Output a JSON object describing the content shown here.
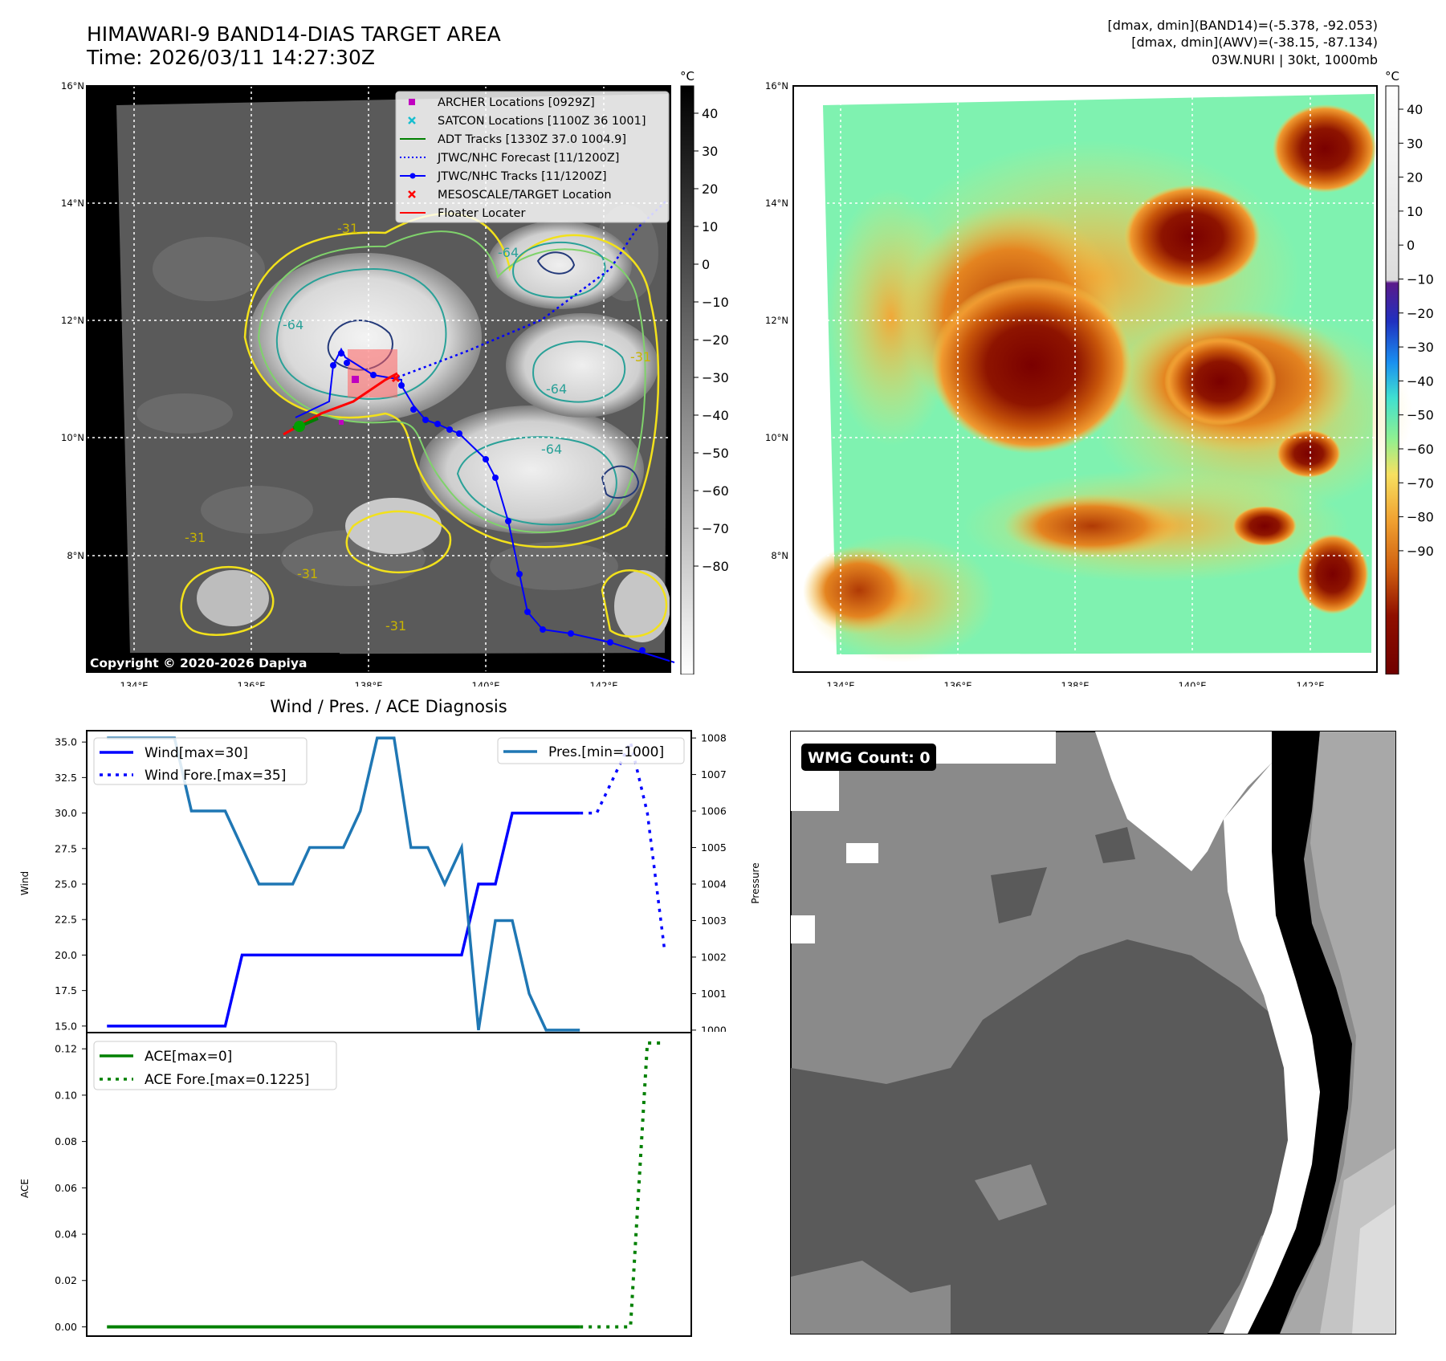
{
  "header": {
    "title_line1": "HIMAWARI-9 BAND14-DIAS TARGET AREA",
    "title_line2": "Time: 2026/03/11 14:27:30Z",
    "info_line1": "[dmax, dmin](BAND14)=(-5.378, -92.053)",
    "info_line2": "[dmax, dmin](AWV)=(-38.15, -87.134)",
    "info_line3": "03W.NURI | 30kt, 1000mb"
  },
  "map_axes": {
    "lat_labels": [
      "16°N",
      "14°N",
      "12°N",
      "10°N",
      "8°N"
    ],
    "lon_labels": [
      "134°E",
      "136°E",
      "138°E",
      "140°E",
      "142°E"
    ]
  },
  "ir_panel": {
    "legend": [
      {
        "label": "ARCHER Locations [0929Z]",
        "color": "#c000c0",
        "marker": "square"
      },
      {
        "label": "SATCON Locations [1100Z 36 1001]",
        "color": "#17becf",
        "marker": "x"
      },
      {
        "label": "ADT Tracks [1330Z 37.0 1004.9]",
        "color": "#008000",
        "marker": "line"
      },
      {
        "label": "JTWC/NHC Forecast [11/1200Z]",
        "color": "#0000ff",
        "marker": "dotted"
      },
      {
        "label": "JTWC/NHC Tracks [11/1200Z]",
        "color": "#0000ff",
        "marker": "dot-line"
      },
      {
        "label": "MESOSCALE/TARGET Location",
        "color": "#ff0000",
        "marker": "x"
      },
      {
        "label": "Floater Locater",
        "color": "#ff0000",
        "marker": "line"
      }
    ],
    "contour_labels": [
      "-31",
      "-64",
      "-64",
      "-64",
      "-64",
      "-31",
      "-31",
      "-31",
      "-31"
    ],
    "copyright": "Copyright © 2020-2026 Dapiya"
  },
  "colorbar_gray": {
    "unit": "°C",
    "ticks": [
      "40",
      "30",
      "20",
      "10",
      "0",
      "−10",
      "−20",
      "−30",
      "−40",
      "−50",
      "−60",
      "−70",
      "−80"
    ]
  },
  "colorbar_color": {
    "unit": "°C",
    "ticks": [
      "40",
      "30",
      "20",
      "10",
      "0",
      "−10",
      "−20",
      "−30",
      "−40",
      "−50",
      "−60",
      "−70",
      "−80",
      "−90"
    ]
  },
  "wmg": {
    "badge": "WMG Count: 0"
  },
  "chart_data": [
    {
      "type": "line",
      "title": "Wind / Pres. / ACE Diagnosis",
      "ylabel": "Wind",
      "y2label": "Pressure",
      "ylim": [
        14.2,
        35.8
      ],
      "y2lim": [
        999.8,
        1008.2
      ],
      "yticks": [
        "35.0",
        "32.5",
        "30.0",
        "27.5",
        "25.0",
        "22.5",
        "20.0",
        "17.5",
        "15.0"
      ],
      "y2ticks": [
        "1008",
        "1007",
        "1006",
        "1005",
        "1004",
        "1003",
        "1002",
        "1001",
        "1000"
      ],
      "x": [
        0,
        1,
        2,
        3,
        4,
        5,
        6,
        7,
        8,
        9,
        10,
        11,
        12,
        13,
        14,
        15,
        16,
        17,
        18,
        19,
        20,
        21,
        22,
        23,
        24,
        25,
        26,
        27,
        28,
        29
      ],
      "series": [
        {
          "name": "Wind[max=30]",
          "axis": "left",
          "color": "#0000ff",
          "style": "solid",
          "x": [
            0,
            1,
            2,
            3,
            4,
            5,
            6,
            7,
            8,
            9,
            10,
            11,
            12,
            13,
            14,
            15,
            16,
            17,
            18,
            19,
            20,
            21,
            22,
            23,
            24,
            25,
            26,
            27,
            28
          ],
          "values": [
            15,
            15,
            15,
            15,
            15,
            15,
            15,
            15,
            20,
            20,
            20,
            20,
            20,
            20,
            20,
            20,
            20,
            20,
            20,
            20,
            20,
            20,
            25,
            25,
            30,
            30,
            30,
            30,
            30
          ]
        },
        {
          "name": "Wind Fore.[max=35]",
          "axis": "left",
          "color": "#0000ff",
          "style": "dotted",
          "x": [
            28,
            29,
            30,
            31,
            32,
            33
          ],
          "values": [
            30,
            30,
            32.5,
            35,
            30,
            20.5
          ]
        },
        {
          "name": "Pres.[min=1000]",
          "axis": "right",
          "color": "#1f77b4",
          "style": "solid",
          "x": [
            0,
            1,
            2,
            3,
            4,
            5,
            6,
            7,
            8,
            9,
            10,
            11,
            12,
            13,
            14,
            15,
            16,
            17,
            18,
            19,
            20,
            21,
            22,
            23,
            24,
            25,
            26,
            27,
            28
          ],
          "values": [
            1008,
            1008,
            1008,
            1008,
            1008,
            1006,
            1006,
            1006,
            1005,
            1004,
            1004,
            1004,
            1005,
            1005,
            1005,
            1006,
            1008,
            1008,
            1005,
            1005,
            1004,
            1005,
            1000,
            1003,
            1003,
            1001,
            1000,
            1000,
            1000
          ]
        }
      ]
    },
    {
      "type": "line",
      "ylabel": "ACE",
      "ylim": [
        -0.004,
        0.127
      ],
      "yticks": [
        "0.12",
        "0.10",
        "0.08",
        "0.06",
        "0.04",
        "0.02",
        "0.00"
      ],
      "series": [
        {
          "name": "ACE[max=0]",
          "color": "#008000",
          "style": "solid",
          "x": [
            0,
            28
          ],
          "values": [
            0,
            0
          ]
        },
        {
          "name": "ACE Fore.[max=0.1225]",
          "color": "#008000",
          "style": "dotted",
          "x": [
            28,
            31,
            32,
            33
          ],
          "values": [
            0,
            0,
            0.1225,
            0.1225
          ]
        }
      ]
    }
  ]
}
